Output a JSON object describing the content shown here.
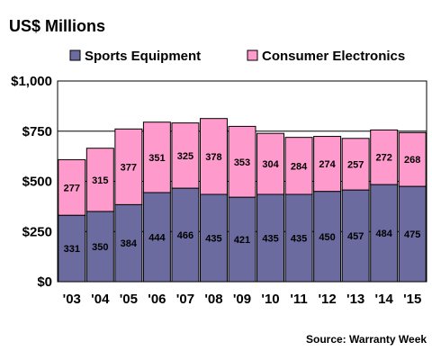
{
  "chart_data": {
    "type": "bar",
    "stacked": true,
    "title": "US$ Millions",
    "categories": [
      "'03",
      "'04",
      "'05",
      "'06",
      "'07",
      "'08",
      "'09",
      "'10",
      "'11",
      "'12",
      "'13",
      "'14",
      "'15"
    ],
    "series": [
      {
        "name": "Sports Equipment",
        "color": "#6B6B9F",
        "values": [
          331,
          350,
          384,
          444,
          466,
          435,
          421,
          435,
          435,
          450,
          457,
          484,
          475
        ]
      },
      {
        "name": "Consumer Electronics",
        "color": "#FF9ACC",
        "values": [
          277,
          315,
          377,
          351,
          325,
          378,
          353,
          304,
          284,
          274,
          257,
          272,
          268
        ]
      }
    ],
    "yticks": [
      "$0",
      "$250",
      "$500",
      "$750",
      "$1,000"
    ],
    "ylim": [
      0,
      1000
    ],
    "grid": true,
    "legend": "top",
    "source": "Source: Warranty Week"
  }
}
